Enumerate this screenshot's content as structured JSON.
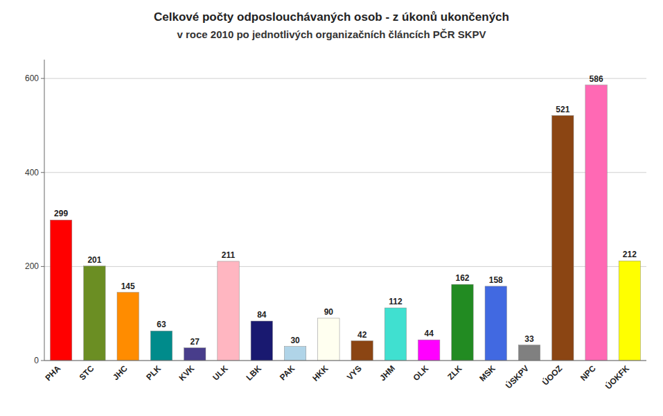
{
  "chart_data": {
    "type": "bar",
    "title": "Celkové počty odposlouchávaných osob - z úkonů ukončených",
    "subtitle": "v roce 2010 po jednotlivých organizačních článcích PČR SKPV",
    "categories": [
      "PHA",
      "STC",
      "JHC",
      "PLK",
      "KVK",
      "ULK",
      "LBK",
      "PAK",
      "HKK",
      "VYS",
      "JHM",
      "OLK",
      "ZLK",
      "MSK",
      "ÚSKPV",
      "ÚOOZ",
      "NPC",
      "ÚOKFK"
    ],
    "values": [
      299,
      201,
      145,
      63,
      27,
      211,
      84,
      30,
      90,
      42,
      112,
      44,
      162,
      158,
      33,
      521,
      586,
      212
    ],
    "colors": [
      "#ff0000",
      "#6b8e23",
      "#ff8c00",
      "#008b8b",
      "#483d8b",
      "#ffb6c1",
      "#191970",
      "#b0d4e8",
      "#fffff0",
      "#8b4513",
      "#40e0d0",
      "#ff00ff",
      "#228b22",
      "#4169e1",
      "#808080",
      "#8b4513",
      "#ff69b4",
      "#ffff00"
    ],
    "ylim": [
      0,
      640
    ],
    "yticks": [
      0,
      200,
      400,
      600
    ],
    "grid": true,
    "data_labels": true
  }
}
